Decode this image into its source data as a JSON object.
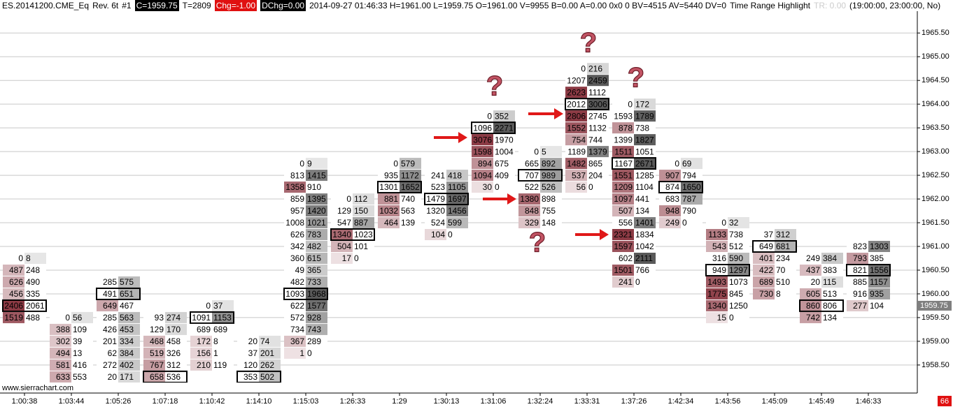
{
  "chart_data": {
    "type": "footprint",
    "header": {
      "symbol": "ES.20141200.CME_Eq",
      "rev": "Rev. 6t",
      "number": "#1",
      "close": "C=1959.75",
      "trades": "T=2809",
      "change": "Chg=-1.00",
      "dchange": "DChg=0.00",
      "info": "2014-09-27 01:46:33 H=1961.00 L=1959.75 O=1961.00 V=9955 B=0.00 A=0.00 0x0 0 BV=4515 AV=5440 DV=0",
      "study": "Time Range Highlight",
      "tr": "TR: 0.00",
      "range": "(19:00:00, 23:00:00, No)"
    },
    "watermark": "www.sierrachart.com",
    "corner": "66",
    "question_mark": "?",
    "last_price": {
      "value": 1959.75,
      "label": "1959.75"
    },
    "tick_size": 0.25,
    "ylim": [
      1958.13,
      1965.96
    ],
    "yticks": [
      {
        "value": 1958.5,
        "label": "1958.50"
      },
      {
        "value": 1959,
        "label": "1959.00"
      },
      {
        "value": 1959.5,
        "label": "1959.50"
      },
      {
        "value": 1960,
        "label": "1960.00"
      },
      {
        "value": 1960.5,
        "label": "1960.50"
      },
      {
        "value": 1961,
        "label": "1961.00"
      },
      {
        "value": 1961.5,
        "label": "1961.50"
      },
      {
        "value": 1962,
        "label": "1962.00"
      },
      {
        "value": 1962.5,
        "label": "1962.50"
      },
      {
        "value": 1963,
        "label": "1963.00"
      },
      {
        "value": 1963.5,
        "label": "1963.50"
      },
      {
        "value": 1964,
        "label": "1964.00"
      },
      {
        "value": 1964.5,
        "label": "1964.50"
      },
      {
        "value": 1965,
        "label": "1965.00"
      },
      {
        "value": 1965.5,
        "label": "1965.50"
      }
    ],
    "grid": true,
    "bid_color": "#8c3a44",
    "ask_color": "#5a5a5a",
    "columns": [
      {
        "time": "1:00:38",
        "high": 1960.75,
        "box": 4,
        "bid": [
          0,
          487,
          626,
          456,
          2406,
          1519
        ],
        "ask": [
          8,
          248,
          490,
          335,
          2061,
          488
        ]
      },
      {
        "time": "1:03:44",
        "high": 1959.5,
        "box": -1,
        "bid": [
          0,
          388,
          302,
          494,
          581,
          633
        ],
        "ask": [
          56,
          109,
          39,
          13,
          416,
          553
        ]
      },
      {
        "time": "1:05:26",
        "high": 1960.25,
        "box": 1,
        "bid": [
          285,
          491,
          649,
          285,
          426,
          201,
          62,
          272,
          20
        ],
        "ask": [
          575,
          651,
          467,
          563,
          453,
          334,
          384,
          402,
          171
        ]
      },
      {
        "time": "1:07:18",
        "high": 1959.5,
        "box": 5,
        "bid": [
          93,
          129,
          468,
          519,
          767,
          658
        ],
        "ask": [
          274,
          170,
          458,
          326,
          312,
          536
        ]
      },
      {
        "time": "1:10:42",
        "high": 1959.75,
        "box": 1,
        "bid": [
          0,
          1091,
          689,
          172,
          156,
          210
        ],
        "ask": [
          37,
          1153,
          689,
          8,
          1,
          119
        ]
      },
      {
        "time": "1:14:10",
        "high": 1959,
        "box": 3,
        "bid": [
          20,
          37,
          120,
          353
        ],
        "ask": [
          74,
          201,
          262,
          502
        ]
      },
      {
        "time": "1:15:03",
        "high": 1962.75,
        "box": 11,
        "bid": [
          0,
          813,
          1358,
          859,
          957,
          1008,
          626,
          342,
          360,
          49,
          482,
          1093,
          622,
          572,
          734,
          367,
          1
        ],
        "ask": [
          9,
          1415,
          910,
          1395,
          1420,
          1021,
          783,
          482,
          615,
          365,
          733,
          1968,
          1577,
          928,
          743,
          289,
          0
        ]
      },
      {
        "time": "1:26:33",
        "high": 1962,
        "box": 3,
        "bid": [
          0,
          129,
          547,
          1340,
          504,
          17
        ],
        "ask": [
          112,
          150,
          887,
          1023,
          101,
          0
        ]
      },
      {
        "time": "1:29",
        "high": 1962.75,
        "box": 2,
        "bid": [
          0,
          935,
          1301,
          881,
          1032,
          464
        ],
        "ask": [
          579,
          1172,
          1652,
          740,
          563,
          139
        ]
      },
      {
        "time": "1:30:13",
        "high": 1962.5,
        "box": 2,
        "bid": [
          241,
          523,
          1479,
          1320,
          524,
          104
        ],
        "ask": [
          418,
          1105,
          1697,
          1456,
          599,
          0
        ]
      },
      {
        "time": "1:31:06",
        "high": 1963.75,
        "box": 1,
        "bid": [
          0,
          1096,
          3076,
          1598,
          894,
          1094,
          30
        ],
        "ask": [
          352,
          2271,
          1970,
          1004,
          675,
          409,
          0
        ]
      },
      {
        "time": "1:32:24",
        "high": 1963,
        "box": 2,
        "bid": [
          0,
          665,
          707,
          522,
          1380,
          848,
          329
        ],
        "ask": [
          5,
          892,
          989,
          526,
          898,
          755,
          148
        ]
      },
      {
        "time": "1:33:31",
        "high": 1964.75,
        "box": 3,
        "bid": [
          0,
          1207,
          2623,
          2012,
          2806,
          1552,
          754,
          1189,
          1482,
          537,
          56
        ],
        "ask": [
          216,
          2459,
          1112,
          3006,
          2745,
          1132,
          744,
          1379,
          865,
          204,
          0
        ]
      },
      {
        "time": "1:37:26",
        "high": 1964,
        "box": 5,
        "bid": [
          0,
          1593,
          878,
          1399,
          1511,
          1167,
          1551,
          1209,
          1097,
          507,
          556,
          2321,
          1597,
          602,
          1501,
          241
        ],
        "ask": [
          172,
          1789,
          738,
          1827,
          1051,
          2671,
          1285,
          1104,
          441,
          134,
          1401,
          1834,
          1042,
          2111,
          766,
          0
        ]
      },
      {
        "time": "1:42:34",
        "high": 1962.75,
        "box": 2,
        "bid": [
          0,
          907,
          874,
          683,
          948,
          249
        ],
        "ask": [
          69,
          794,
          1650,
          787,
          790,
          0
        ]
      },
      {
        "time": "1:43:56",
        "high": 1961.5,
        "box": 4,
        "bid": [
          0,
          1133,
          543,
          316,
          949,
          1493,
          1775,
          1340,
          15
        ],
        "ask": [
          32,
          738,
          512,
          590,
          1297,
          1073,
          845,
          1250,
          0
        ]
      },
      {
        "time": "1:45:09",
        "high": 1961.25,
        "box": 1,
        "bid": [
          37,
          649,
          401,
          422,
          689,
          730
        ],
        "ask": [
          312,
          681,
          234,
          70,
          510,
          8
        ]
      },
      {
        "time": "1:45:49",
        "high": 1960.75,
        "box": 4,
        "bid": [
          249,
          437,
          20,
          605,
          860,
          742
        ],
        "ask": [
          384,
          383,
          115,
          513,
          806,
          134
        ]
      },
      {
        "time": "1:46:33",
        "high": 1961,
        "box": 2,
        "bid": [
          823,
          793,
          821,
          885,
          916,
          277
        ],
        "ask": [
          1303,
          385,
          1556,
          1157,
          935,
          104
        ]
      }
    ]
  }
}
